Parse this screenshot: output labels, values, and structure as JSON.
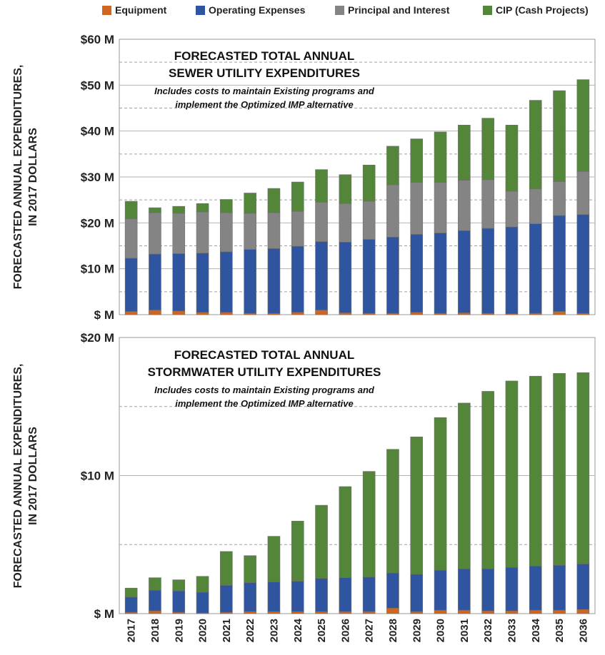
{
  "legend": [
    {
      "name": "Equipment",
      "color": "#d0651e"
    },
    {
      "name": "Operating Expenses",
      "color": "#2f55a0"
    },
    {
      "name": "Principal and Interest",
      "color": "#848484"
    },
    {
      "name": "CIP (Cash Projects)",
      "color": "#54863a"
    }
  ],
  "chart_data": [
    {
      "type": "bar",
      "stacked": true,
      "title": "FORECASTED TOTAL ANNUAL",
      "subtitle": "SEWER UTILITY EXPENDITURES",
      "note_lines": [
        "Includes costs to maintain Existing programs and",
        "implement the Optimized IMP alternative"
      ],
      "ylabel_lines": [
        "FORECASTED ANNUAL EXPENDITURES,",
        "IN 2017 DOLLARS"
      ],
      "ylim": [
        0,
        60
      ],
      "yticks": [
        0,
        10,
        20,
        30,
        40,
        50,
        60
      ],
      "ytick_labels": [
        "$ M",
        "$10 M",
        "$20 M",
        "$30 M",
        "$40 M",
        "$50 M",
        "$60 M"
      ],
      "grid": "solid lines at labeled ticks, dashed at midpoints",
      "categories": [
        "2017",
        "2018",
        "2019",
        "2020",
        "2021",
        "2022",
        "2023",
        "2024",
        "2025",
        "2026",
        "2027",
        "2028",
        "2029",
        "2030",
        "2031",
        "2032",
        "2033",
        "2034",
        "2035",
        "2036"
      ],
      "series": [
        {
          "name": "Equipment",
          "color": "#d0651e",
          "values": [
            0.7,
            1.0,
            0.8,
            0.5,
            0.5,
            0.3,
            0.3,
            0.5,
            1.0,
            0.4,
            0.3,
            0.3,
            0.5,
            0.3,
            0.4,
            0.3,
            0.2,
            0.3,
            0.7,
            0.3
          ]
        },
        {
          "name": "Operating Expenses",
          "color": "#2f55a0",
          "values": [
            11.6,
            12.2,
            12.5,
            12.9,
            13.2,
            13.9,
            14.1,
            14.4,
            14.9,
            15.4,
            16.1,
            16.6,
            17.0,
            17.5,
            17.9,
            18.5,
            18.9,
            19.5,
            20.9,
            21.5
          ]
        },
        {
          "name": "Principal and Interest",
          "color": "#848484",
          "values": [
            8.6,
            9.0,
            8.8,
            9.0,
            8.5,
            7.9,
            7.8,
            7.6,
            8.6,
            8.4,
            8.3,
            11.4,
            11.3,
            11.0,
            11.0,
            10.6,
            7.8,
            7.6,
            7.4,
            9.4
          ]
        },
        {
          "name": "CIP (Cash Projects)",
          "color": "#54863a",
          "values": [
            3.8,
            1.1,
            1.5,
            1.8,
            2.9,
            4.4,
            5.3,
            6.4,
            7.1,
            6.3,
            7.9,
            8.4,
            9.5,
            11.0,
            12.0,
            13.4,
            14.4,
            19.3,
            19.8,
            20.0
          ]
        }
      ]
    },
    {
      "type": "bar",
      "stacked": true,
      "title": "FORECASTED TOTAL ANNUAL",
      "subtitle": "STORMWATER UTILITY EXPENDITURES",
      "note_lines": [
        "Includes costs to maintain Existing programs and",
        "implement the Optimized IMP alternative"
      ],
      "ylabel_lines": [
        "FORECASTED ANNUAL EXPENDITURES,",
        "IN 2017 DOLLARS"
      ],
      "ylim": [
        0,
        20
      ],
      "yticks": [
        0,
        10,
        20
      ],
      "ytick_labels": [
        "$ M",
        "$10 M",
        "$20 M"
      ],
      "grid": "solid lines at labeled ticks, dashed at midpoints",
      "categories": [
        "2017",
        "2018",
        "2019",
        "2020",
        "2021",
        "2022",
        "2023",
        "2024",
        "2025",
        "2026",
        "2027",
        "2028",
        "2029",
        "2030",
        "2031",
        "2032",
        "2033",
        "2034",
        "2035",
        "2036"
      ],
      "series": [
        {
          "name": "Equipment",
          "color": "#d0651e",
          "values": [
            0.1,
            0.2,
            0.1,
            0.05,
            0.1,
            0.15,
            0.15,
            0.15,
            0.15,
            0.15,
            0.15,
            0.4,
            0.15,
            0.25,
            0.25,
            0.2,
            0.2,
            0.25,
            0.25,
            0.3
          ]
        },
        {
          "name": "Operating Expenses",
          "color": "#2f55a0",
          "values": [
            1.1,
            1.5,
            1.55,
            1.5,
            1.95,
            2.1,
            2.15,
            2.2,
            2.4,
            2.45,
            2.5,
            2.55,
            2.7,
            2.9,
            3.0,
            3.05,
            3.15,
            3.2,
            3.25,
            3.3
          ]
        },
        {
          "name": "Principal and Interest",
          "color": "#848484",
          "values": [
            0,
            0,
            0,
            0,
            0,
            0,
            0,
            0,
            0,
            0,
            0,
            0,
            0,
            0,
            0,
            0,
            0,
            0,
            0,
            0
          ]
        },
        {
          "name": "CIP (Cash Projects)",
          "color": "#54863a",
          "values": [
            0.65,
            0.9,
            0.8,
            1.15,
            2.45,
            1.95,
            3.3,
            4.35,
            5.3,
            6.6,
            7.65,
            8.95,
            9.95,
            11.05,
            12.0,
            12.85,
            13.5,
            13.75,
            13.9,
            13.85
          ]
        }
      ]
    }
  ]
}
